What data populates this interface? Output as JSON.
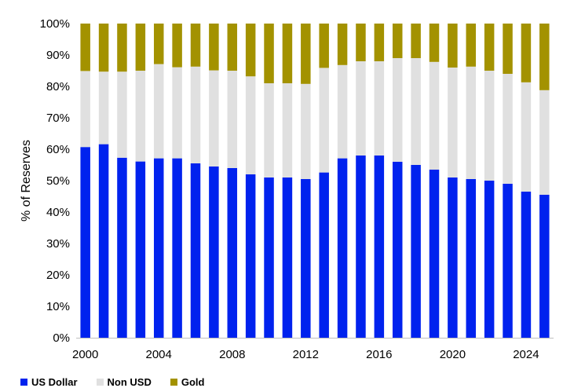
{
  "chart_data": {
    "type": "bar",
    "stacked": true,
    "categories": [
      "2000",
      "2001",
      "2002",
      "2003",
      "2004",
      "2005",
      "2006",
      "2007",
      "2008",
      "2009",
      "2010",
      "2011",
      "2012",
      "2013",
      "2014",
      "2015",
      "2016",
      "2017",
      "2018",
      "2019",
      "2020",
      "2021",
      "2022",
      "2023",
      "2024",
      "2025"
    ],
    "x_tick_labels": [
      "2000",
      "2004",
      "2008",
      "2012",
      "2016",
      "2020",
      "2024"
    ],
    "series": [
      {
        "name": "US Dollar",
        "color": "#0022EE",
        "values": [
          60.7,
          61.6,
          57.3,
          56.1,
          57.1,
          57.1,
          55.5,
          54.5,
          54.0,
          52.0,
          51.0,
          51.0,
          50.5,
          52.6,
          57.1,
          58.0,
          58.0,
          56.0,
          55.0,
          53.5,
          51.0,
          50.5,
          50.0,
          49.0,
          46.5,
          45.5
        ]
      },
      {
        "name": "Non USD",
        "color": "#E0E0E0",
        "values": [
          24.2,
          23.1,
          27.4,
          28.9,
          30.0,
          29.0,
          30.8,
          30.6,
          31.0,
          31.2,
          30.0,
          30.0,
          30.3,
          33.3,
          29.7,
          30.0,
          30.0,
          33.0,
          34.0,
          34.3,
          35.0,
          35.8,
          35.0,
          35.0,
          34.8,
          33.3
        ]
      },
      {
        "name": "Gold",
        "color": "#A39200",
        "values": [
          15.1,
          15.3,
          15.3,
          15.0,
          12.9,
          13.9,
          13.7,
          14.9,
          15.0,
          16.8,
          19.0,
          19.0,
          19.2,
          14.1,
          13.2,
          12.0,
          12.0,
          11.0,
          11.0,
          12.2,
          14.0,
          13.7,
          15.0,
          16.0,
          18.7,
          21.2
        ]
      }
    ],
    "ylabel": "% of Reserves",
    "ylim": [
      0,
      100
    ],
    "y_ticks": [
      "0%",
      "10%",
      "20%",
      "30%",
      "40%",
      "50%",
      "60%",
      "70%",
      "80%",
      "90%",
      "100%"
    ],
    "grid": false,
    "legend_position": "bottom-left"
  }
}
